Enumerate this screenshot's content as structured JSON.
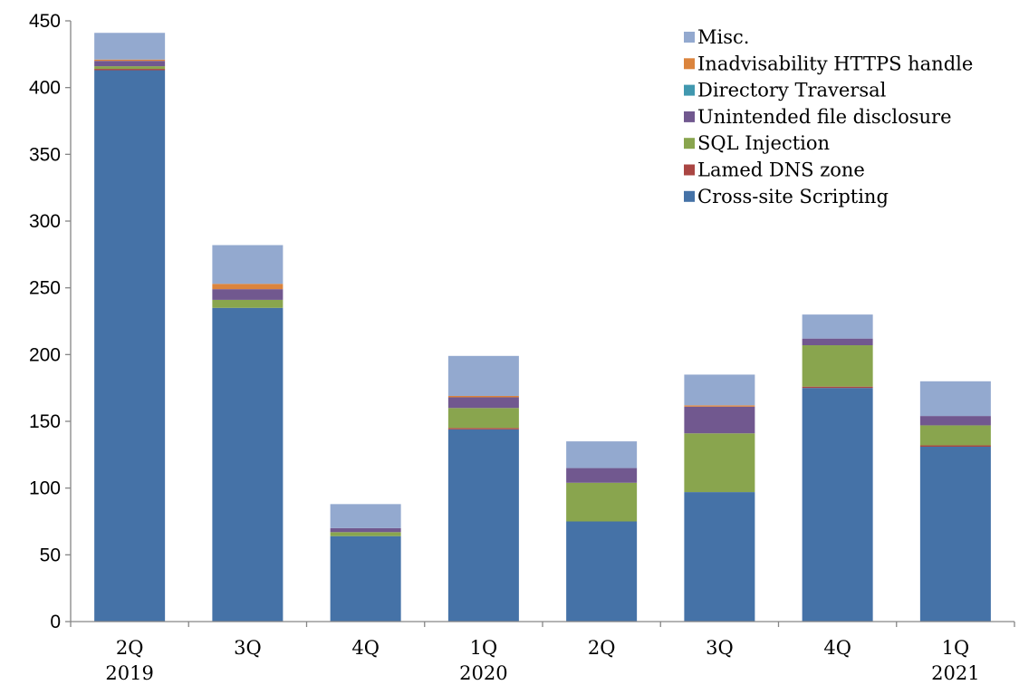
{
  "chart_data": {
    "type": "bar",
    "stacked": true,
    "title": "",
    "xlabel": "",
    "ylabel": "",
    "ylim": [
      0,
      450
    ],
    "yticks": [
      0,
      50,
      100,
      150,
      200,
      250,
      300,
      350,
      400,
      450
    ],
    "grid": false,
    "legend_position": "top-right",
    "categories": [
      {
        "quarter": "2Q",
        "year": "2019"
      },
      {
        "quarter": "3Q",
        "year": ""
      },
      {
        "quarter": "4Q",
        "year": ""
      },
      {
        "quarter": "1Q",
        "year": "2020"
      },
      {
        "quarter": "2Q",
        "year": ""
      },
      {
        "quarter": "3Q",
        "year": ""
      },
      {
        "quarter": "4Q",
        "year": ""
      },
      {
        "quarter": "1Q",
        "year": "2021"
      }
    ],
    "series": [
      {
        "name": "Cross-site Scripting",
        "color": "#4572A7",
        "values": [
          413,
          235,
          64,
          144,
          75,
          97,
          175,
          131
        ]
      },
      {
        "name": "Lamed DNS zone",
        "color": "#AA4643",
        "values": [
          1,
          0,
          0,
          1,
          0,
          0,
          1,
          1
        ]
      },
      {
        "name": "SQL Injection",
        "color": "#89A54E",
        "values": [
          2,
          6,
          3,
          15,
          29,
          44,
          31,
          15
        ]
      },
      {
        "name": "Unintended file disclosure",
        "color": "#71588F",
        "values": [
          4,
          8,
          3,
          8,
          11,
          20,
          5,
          7
        ]
      },
      {
        "name": "Directory Traversal",
        "color": "#4198AF",
        "values": [
          0,
          0,
          0,
          0,
          0,
          0,
          0,
          0
        ]
      },
      {
        "name": "Inadvisability HTTPS handle",
        "color": "#DB843D",
        "values": [
          1,
          4,
          0,
          1,
          0,
          1,
          0,
          0
        ]
      },
      {
        "name": "Misc.",
        "color": "#93A9CF",
        "values": [
          20,
          29,
          18,
          30,
          20,
          23,
          18,
          26
        ]
      }
    ]
  }
}
